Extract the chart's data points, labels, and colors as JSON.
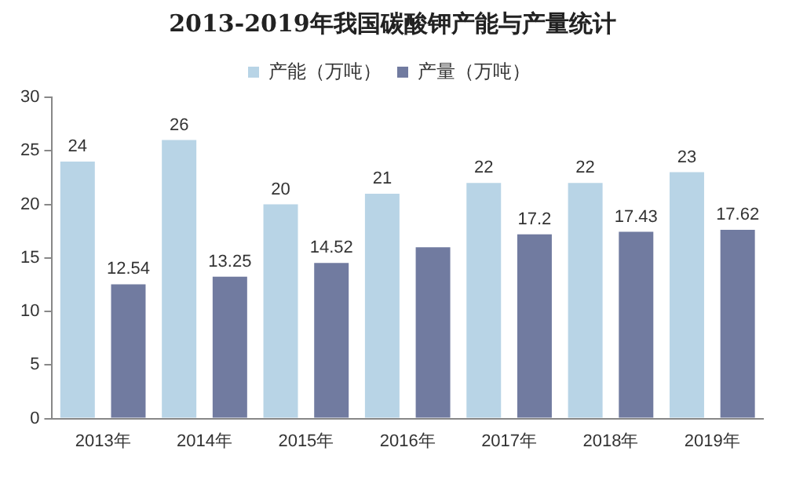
{
  "chart_data": {
    "type": "bar",
    "title": "2013-2019年我国碳酸钾产能与产量统计",
    "categories": [
      "2013年",
      "2014年",
      "2015年",
      "2016年",
      "2017年",
      "2018年",
      "2019年"
    ],
    "series": [
      {
        "name": "产能（万吨）",
        "color": "#b8d4e6",
        "values": [
          24,
          26,
          20,
          21,
          22,
          22,
          23
        ],
        "value_labels": [
          "24",
          "26",
          "20",
          "21",
          "22",
          "22",
          "23"
        ]
      },
      {
        "name": "产量（万吨）",
        "color": "#717ba0",
        "values": [
          12.54,
          13.25,
          14.52,
          16,
          17.2,
          17.43,
          17.62
        ],
        "value_labels": [
          "12.54",
          "13.25",
          "14.52",
          null,
          "17.2",
          "17.43",
          "17.62"
        ]
      }
    ],
    "ylim": [
      0,
      30
    ],
    "yticks": [
      0,
      5,
      10,
      15,
      20,
      25,
      30
    ],
    "grid": false,
    "legend": "top"
  }
}
